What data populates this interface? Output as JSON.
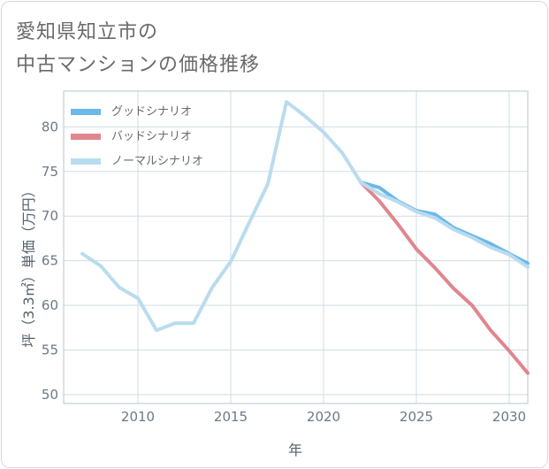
{
  "title_line1": "愛知県知立市の",
  "title_line2": "中古マンションの価格推移",
  "chart_data": {
    "type": "line",
    "xlabel": "年",
    "ylabel": "坪（3.3㎡）単価（万円）",
    "xlim": [
      2006,
      2031
    ],
    "ylim": [
      49,
      84
    ],
    "xticks": [
      2010,
      2015,
      2020,
      2025,
      2030
    ],
    "yticks": [
      50,
      55,
      60,
      65,
      70,
      75,
      80
    ],
    "grid": true,
    "legend_position": "top-left",
    "series": [
      {
        "name": "グッドシナリオ",
        "color": "#6bb8ea",
        "x": [
          2022,
          2023,
          2024,
          2025,
          2026,
          2027,
          2028,
          2029,
          2030,
          2031
        ],
        "values": [
          73.8,
          73.2,
          71.7,
          70.6,
          70.2,
          68.7,
          67.8,
          66.9,
          65.8,
          64.7
        ]
      },
      {
        "name": "バッドシナリオ",
        "color": "#e0868f",
        "x": [
          2022,
          2023,
          2024,
          2025,
          2026,
          2027,
          2028,
          2029,
          2030,
          2031
        ],
        "values": [
          73.8,
          71.7,
          69.1,
          66.3,
          64.2,
          61.9,
          60.0,
          57.2,
          54.9,
          52.4
        ]
      },
      {
        "name": "ノーマルシナリオ",
        "color": "#b9dcee",
        "x": [
          2007,
          2008,
          2009,
          2010,
          2011,
          2012,
          2013,
          2014,
          2015,
          2016,
          2017,
          2018,
          2019,
          2020,
          2021,
          2022,
          2023,
          2024,
          2025,
          2026,
          2027,
          2028,
          2029,
          2030,
          2031
        ],
        "values": [
          65.8,
          64.4,
          62.0,
          60.8,
          57.2,
          58.0,
          58.0,
          62.0,
          64.9,
          69.3,
          73.6,
          82.8,
          81.2,
          79.4,
          77.1,
          73.8,
          72.5,
          71.6,
          70.5,
          69.8,
          68.5,
          67.6,
          66.5,
          65.7,
          64.3
        ]
      }
    ]
  }
}
